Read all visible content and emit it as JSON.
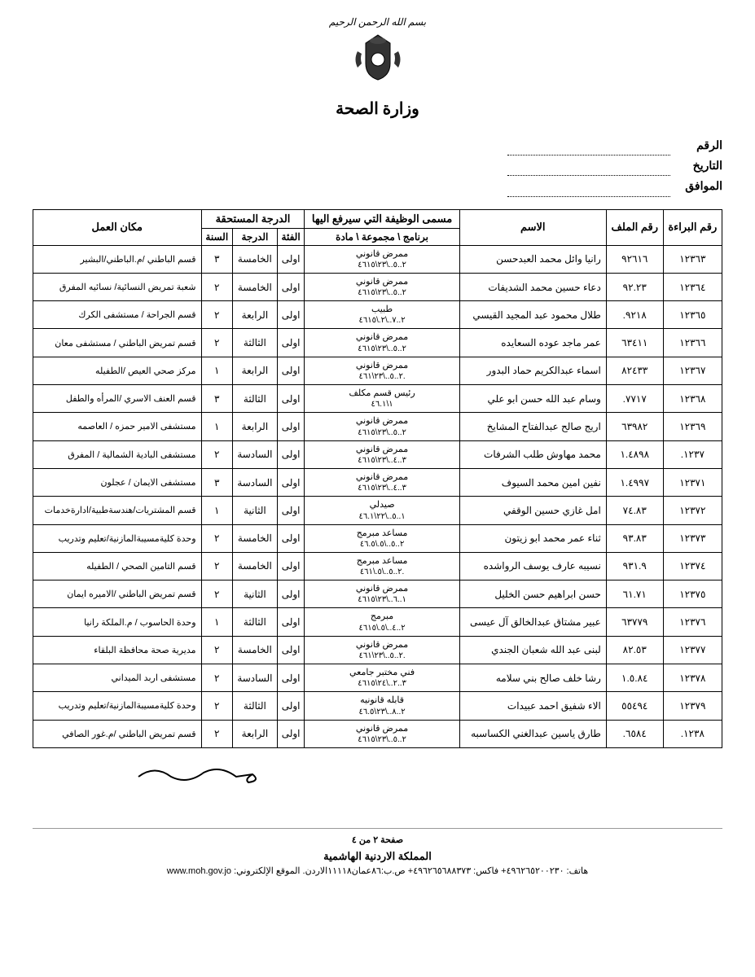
{
  "header": {
    "bismillah": "بسم الله الرحمن الرحيم",
    "ministry": "وزارة الصحة"
  },
  "form": {
    "number_label": "الرقم",
    "date_label": "التاريخ",
    "corresponds_label": "الموافق"
  },
  "table": {
    "headers": {
      "bara_no": "رقم البراءة",
      "file_no": "رقم الملف",
      "name": "الاسم",
      "position_group": "مسمى الوظيفة التي سيرفع اليها",
      "position_sub": "برنامج \\ مجموعة \\ مادة",
      "grade_group": "الدرجة المستحقة",
      "category": "الفئة",
      "grade": "الدرجة",
      "year": "السنة",
      "workplace": "مكان العمل"
    },
    "rows": [
      {
        "bara": "١٢٣٦٣",
        "file": "٩٢٦١٦",
        "name": "رانيا وائل محمد العبدحسن",
        "pos": "ممرض قانوني",
        "code": "٢..٥..\\٢٣\\٤٦١٥",
        "cat": "اولى",
        "grade": "الخامسة",
        "year": "٣",
        "work": "قسم الباطني /م.الباطني/البشير"
      },
      {
        "bara": "١٢٣٦٤",
        "file": "٩٢.٢٣",
        "name": "دعاء حسين محمد الشديفات",
        "pos": "ممرض قانوني",
        "code": "٢..٥..\\٢٣\\٤٦١٥",
        "cat": "اولى",
        "grade": "الخامسة",
        "year": "٢",
        "work": "شعبة تمريض النسائية/ نسائيه المفرق"
      },
      {
        "bara": "١٢٣٦٥",
        "file": "٩٢١٨.",
        "name": "طلال محمود عبد المجيد القيسي",
        "pos": "طبيب",
        "code": "٢..٧..\\٢.\\٤٦١٥",
        "cat": "اولى",
        "grade": "الرابعة",
        "year": "٢",
        "work": "قسم الجراحة / مستشفى الكرك"
      },
      {
        "bara": "١٢٣٦٦",
        "file": "٦٣٤١١",
        "name": "عمر ماجد عوده السعايده",
        "pos": "ممرض قانوني",
        "code": "٢..٥..\\٢٣\\٤٦١٥",
        "cat": "اولى",
        "grade": "الثالثة",
        "year": "٢",
        "work": "قسم تمريض الباطني / مستشفى معان"
      },
      {
        "bara": "١٢٣٦٧",
        "file": "٨٢٤٣٣",
        "name": "اسماء عبدالكريم حماد البدور",
        "pos": "ممرض قانوني",
        "code": "٢..٥..\\٢٣\\٤٦١.",
        "cat": "اولى",
        "grade": "الرابعة",
        "year": "١",
        "work": "مركز صحي العيص /الطفيله"
      },
      {
        "bara": "١٢٣٦٨",
        "file": "٧٧١٧.",
        "name": "وسام عبد الله حسن ابو علي",
        "pos": "رئيس قسم مكلف",
        "code": "١\\٤٦.١",
        "cat": "اولى",
        "grade": "الثالثة",
        "year": "٣",
        "work": "قسم العنف الاسري /المرأه والطفل"
      },
      {
        "bara": "١٢٣٦٩",
        "file": "٦٣٩٨٢",
        "name": "اريج صالح عبدالفتاح المشايخ",
        "pos": "ممرض قانوني",
        "code": "٢..٥..\\٢٣\\٤٦١٥",
        "cat": "اولى",
        "grade": "الرابعة",
        "year": "١",
        "work": "مستشفى الامير حمزه / العاصمه"
      },
      {
        "bara": "١٢٣٧.",
        "file": "١.٤٨٩٨",
        "name": "محمد مهاوش طلب الشرفات",
        "pos": "ممرض قانوني",
        "code": "٣..٤..\\٢٣\\٤٦١٥",
        "cat": "اولى",
        "grade": "السادسة",
        "year": "٢",
        "work": "مستشفى البادية الشمالية / المفرق"
      },
      {
        "bara": "١٢٣٧١",
        "file": "١.٤٩٩٧",
        "name": "نفين امين محمد السيوف",
        "pos": "ممرض قانوني",
        "code": "٣..٤..\\٢٣\\٤٦١٥",
        "cat": "اولى",
        "grade": "السادسة",
        "year": "٣",
        "work": "مستشفى الايمان / عجلون"
      },
      {
        "bara": "١٢٣٧٢",
        "file": "٧٤.٨٣",
        "name": "امل غازي حسين الوقفي",
        "pos": "صيدلي",
        "code": "١..٥..\\٢٢\\٤٦.١",
        "cat": "اولى",
        "grade": "الثانية",
        "year": "١",
        "work": "قسم المشتريات/هندسةطبية/ادارةخدمات"
      },
      {
        "bara": "١٢٣٧٣",
        "file": "٩٣.٨٣",
        "name": "ثناء عمر محمد ابو زيتون",
        "pos": "مساعد مبرمج",
        "code": "٢..٥..\\٥.\\٤٦.٥",
        "cat": "اولى",
        "grade": "الخامسة",
        "year": "٢",
        "work": "وحدة كليةمسيبةالمازنية/تعليم وتدريب"
      },
      {
        "bara": "١٢٣٧٤",
        "file": "٩٣١.٩",
        "name": "نسيبه عارف يوسف الرواشده",
        "pos": "مساعد مبرمج",
        "code": "٢..٥..\\٥.\\٤٦١.",
        "cat": "اولى",
        "grade": "الخامسة",
        "year": "٢",
        "work": "قسم التامين الصحي / الطفيله"
      },
      {
        "bara": "١٢٣٧٥",
        "file": "٦١.٧١",
        "name": "حسن ابراهيم حسن الخليل",
        "pos": "ممرض قانوني",
        "code": "١..٦..\\٢٣\\٤٦١٥",
        "cat": "اولى",
        "grade": "الثانية",
        "year": "٢",
        "work": "قسم تمريض الباطني /الاميره ايمان"
      },
      {
        "bara": "١٢٣٧٦",
        "file": "٦٣٧٧٩",
        "name": "عبير مشتاق عبدالخالق آل عيسى",
        "pos": "مبرمج",
        "code": "٢..٤..\\٥.\\٤٦١٥",
        "cat": "اولى",
        "grade": "الثالثة",
        "year": "١",
        "work": "وحدة الحاسوب / م.الملكة رانيا"
      },
      {
        "bara": "١٢٣٧٧",
        "file": "٨٢.٥٣",
        "name": "لبنى عبد الله شعبان الجندي",
        "pos": "ممرض قانوني",
        "code": "٢..٥..\\٢٣\\٤٦١.",
        "cat": "اولى",
        "grade": "الخامسة",
        "year": "٢",
        "work": "مديرية صحة محافظة البلقاء"
      },
      {
        "bara": "١٢٣٧٨",
        "file": "١.٥.٨٤",
        "name": "رشا خلف صالح بني سلامه",
        "pos": "فني مختبر جامعي",
        "code": "٣..٢..\\٢٤\\٤٦١٥",
        "cat": "اولى",
        "grade": "السادسة",
        "year": "٢",
        "work": "مستشفى اربد الميداني"
      },
      {
        "bara": "١٢٣٧٩",
        "file": "٥٥٤٩٤",
        "name": "الاء شفيق احمد عبيدات",
        "pos": "قابله قانونيه",
        "code": "٢..٨..\\٢٣\\٤٦.٥",
        "cat": "اولى",
        "grade": "الثالثة",
        "year": "٢",
        "work": "وحدة كليةمسيبةالمازنية/تعليم وتدريب"
      },
      {
        "bara": "١٢٣٨.",
        "file": "٦٥٨٤.",
        "name": "طارق ياسين عبدالغني الكساسبه",
        "pos": "ممرض قانوني",
        "code": "٢..٥..\\٢٣\\٤٦١٥",
        "cat": "اولى",
        "grade": "الرابعة",
        "year": "٢",
        "work": "قسم تمريض الباطني /م.غور الصافي"
      }
    ]
  },
  "footer": {
    "page": "صفحة ٢ من ٤",
    "kingdom": "المملكة الاردنية الهاشمية",
    "contact": "هاتف: ٤٩٦٢٦٥٢٠٠٢٣٠+ فاكس: ٤٩٦٢٦٥٦٨٨٣٧٣+ ص.ب:٨٦عمان١١١١٨الاردن. الموقع الإلكتروني: ",
    "url": "www.moh.gov.jo"
  }
}
